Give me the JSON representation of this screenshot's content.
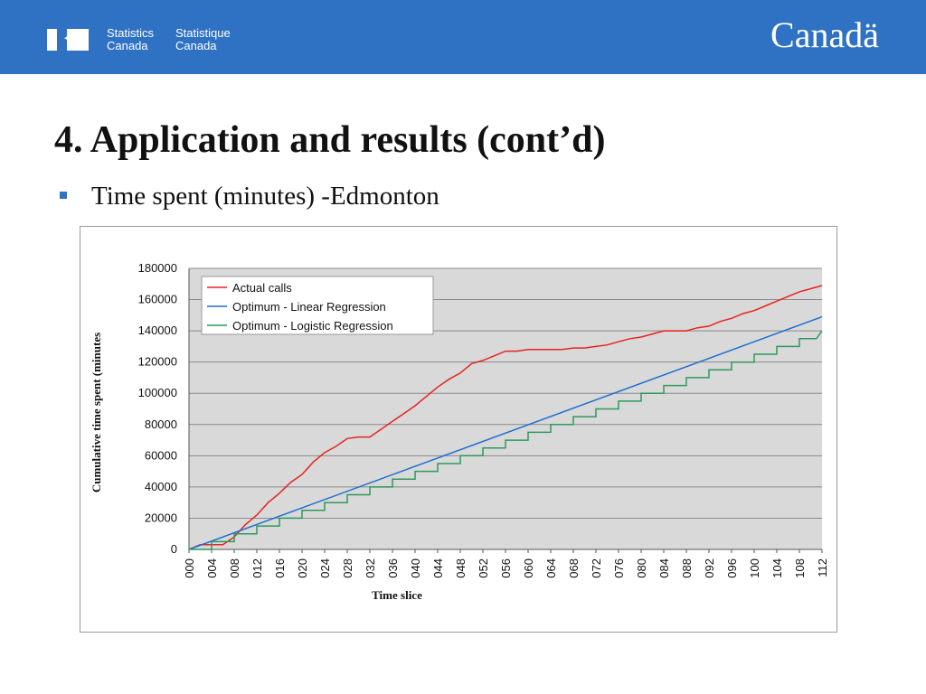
{
  "header": {
    "signature_en_1": "Statistics",
    "signature_en_2": "Canada",
    "signature_fr_1": "Statistique",
    "signature_fr_2": "Canada",
    "wordmark": "Canadä",
    "background_color": "#2f72c4"
  },
  "slide": {
    "title": "4. Application and results (cont’d)",
    "bullet": "Time spent (minutes) -Edmonton"
  },
  "chart_data": {
    "type": "line",
    "title": "",
    "xlabel": "Time slice",
    "ylabel": "Cumulative time spent (minutes",
    "ylim": [
      0,
      180000
    ],
    "yticks": [
      0,
      20000,
      40000,
      60000,
      80000,
      100000,
      120000,
      140000,
      160000,
      180000
    ],
    "xticks": [
      "000",
      "004",
      "008",
      "012",
      "016",
      "020",
      "024",
      "028",
      "032",
      "036",
      "040",
      "044",
      "048",
      "052",
      "056",
      "060",
      "064",
      "068",
      "072",
      "076",
      "080",
      "084",
      "088",
      "092",
      "096",
      "100",
      "104",
      "108",
      "112"
    ],
    "xlim": [
      0,
      112
    ],
    "grid": true,
    "legend_position": "top-left",
    "series": [
      {
        "name": "Actual calls",
        "color": "#e8231f",
        "x": [
          0,
          2,
          4,
          6,
          8,
          10,
          12,
          14,
          16,
          18,
          20,
          22,
          24,
          26,
          28,
          30,
          32,
          34,
          36,
          38,
          40,
          42,
          44,
          46,
          48,
          50,
          52,
          54,
          56,
          58,
          60,
          62,
          64,
          66,
          68,
          70,
          72,
          74,
          76,
          78,
          80,
          82,
          84,
          86,
          88,
          90,
          92,
          94,
          96,
          98,
          100,
          102,
          104,
          106,
          108,
          110,
          112
        ],
        "y": [
          0,
          3000,
          3000,
          3000,
          8000,
          16000,
          22000,
          30000,
          36000,
          43000,
          48000,
          56000,
          62000,
          66000,
          71000,
          72000,
          72000,
          77000,
          82000,
          87000,
          92000,
          98000,
          104000,
          109000,
          113000,
          119000,
          121000,
          124000,
          127000,
          127000,
          128000,
          128000,
          128000,
          128000,
          129000,
          129000,
          130000,
          131000,
          133000,
          135000,
          136000,
          138000,
          140000,
          140000,
          140000,
          142000,
          143000,
          146000,
          148000,
          151000,
          153000,
          156000,
          159000,
          162000,
          165000,
          167000,
          169000
        ]
      },
      {
        "name": "Optimum  - Linear Regression",
        "color": "#1f6fd0",
        "x": [
          0,
          112
        ],
        "y": [
          0,
          149000
        ]
      },
      {
        "name": "Optimum  - Logistic Regression",
        "color": "#2e9a5a",
        "x": [
          0,
          4,
          4,
          8,
          8,
          12,
          12,
          16,
          16,
          20,
          20,
          24,
          24,
          28,
          28,
          32,
          32,
          36,
          36,
          40,
          40,
          44,
          44,
          48,
          48,
          52,
          52,
          56,
          56,
          60,
          60,
          64,
          64,
          68,
          68,
          72,
          72,
          76,
          76,
          80,
          80,
          84,
          84,
          88,
          88,
          92,
          92,
          96,
          96,
          100,
          100,
          104,
          104,
          108,
          108,
          111,
          112
        ],
        "y": [
          0,
          0,
          5000,
          5000,
          10000,
          10000,
          15000,
          15000,
          20000,
          20000,
          25000,
          25000,
          30000,
          30000,
          35000,
          35000,
          40000,
          40000,
          45000,
          45000,
          50000,
          50000,
          55000,
          55000,
          60000,
          60000,
          65000,
          65000,
          70000,
          70000,
          75000,
          75000,
          80000,
          80000,
          85000,
          85000,
          90000,
          90000,
          95000,
          95000,
          100000,
          100000,
          105000,
          105000,
          110000,
          110000,
          115000,
          115000,
          120000,
          120000,
          125000,
          125000,
          130000,
          130000,
          135000,
          135000,
          140000
        ]
      }
    ]
  }
}
